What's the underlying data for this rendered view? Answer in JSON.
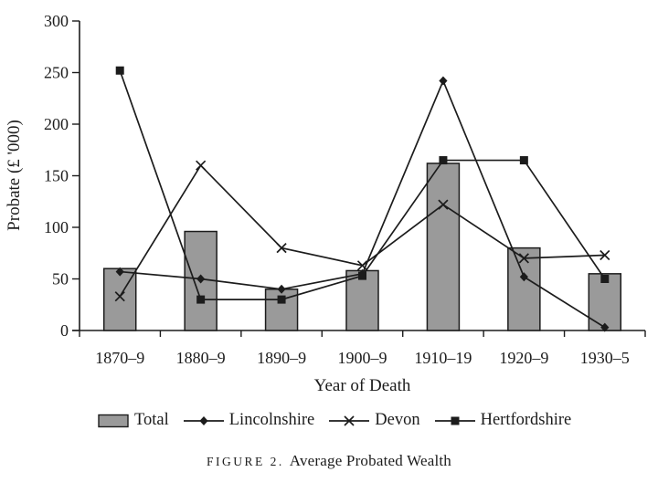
{
  "figure": {
    "caption_label": "FIGURE 2.",
    "caption_title": "Average Probated Wealth"
  },
  "chart_data": {
    "type": "bar",
    "subtype": "bar-line-combo",
    "title": "Average Probated Wealth",
    "xlabel": "Year of Death",
    "ylabel": "Probate (£ '000)",
    "categories": [
      "1870–9",
      "1880–9",
      "1890–9",
      "1900–9",
      "1910–19",
      "1920–9",
      "1930–5"
    ],
    "series": [
      {
        "name": "Total",
        "type": "bar",
        "marker": "bar",
        "values": [
          60,
          96,
          40,
          58,
          162,
          80,
          55
        ]
      },
      {
        "name": "Lincolnshire",
        "type": "line",
        "marker": "diamond",
        "values": [
          57,
          50,
          40,
          55,
          242,
          52,
          3
        ]
      },
      {
        "name": "Devon",
        "type": "line",
        "marker": "x",
        "values": [
          33,
          160,
          80,
          63,
          122,
          70,
          73
        ]
      },
      {
        "name": "Hertfordshire",
        "type": "line",
        "marker": "square",
        "values": [
          252,
          30,
          30,
          53,
          165,
          165,
          50
        ]
      }
    ],
    "ylim": [
      0,
      300
    ],
    "yticks": [
      0,
      50,
      100,
      150,
      200,
      250,
      300
    ],
    "grid": false,
    "legend_position": "bottom",
    "colors": {
      "bar_fill": "#9a9a9a",
      "stroke": "#1c1c1c",
      "background": "#ffffff"
    }
  }
}
